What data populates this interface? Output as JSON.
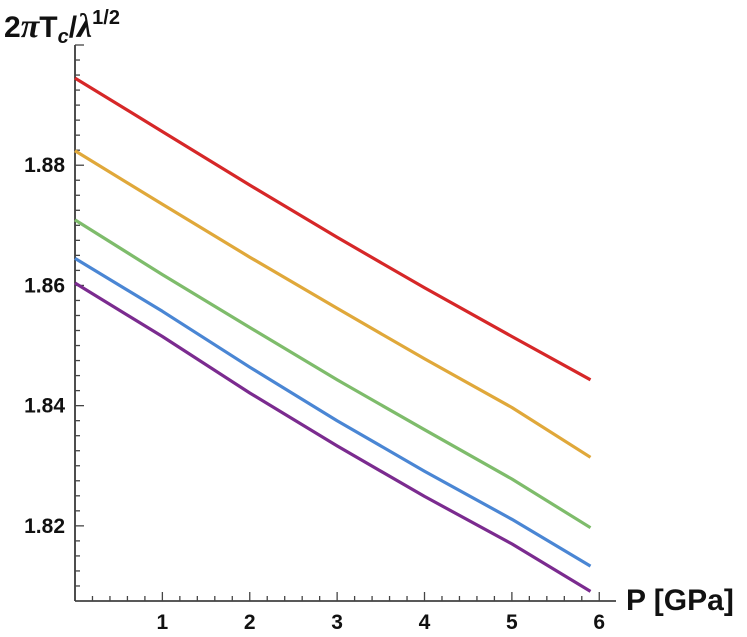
{
  "chart_data": {
    "type": "line",
    "title": "",
    "ylabel": {
      "prefix": "2",
      "pi": "π",
      "t": "T",
      "sub": "c",
      "slash": "/",
      "lambda": "λ",
      "sup": "1/2"
    },
    "xlabel": "P [GPa]",
    "xlim": [
      0,
      6.1
    ],
    "ylim": [
      1.8075,
      1.9
    ],
    "x_ticks": [
      1,
      2,
      3,
      4,
      5,
      6
    ],
    "y_ticks": [
      1.82,
      1.84,
      1.86,
      1.88
    ],
    "y_tick_labels": [
      "1.82",
      "1.84",
      "1.86",
      "1.88"
    ],
    "grid": false,
    "legend": "none",
    "series": [
      {
        "color": "#d62728",
        "x": [
          0,
          1,
          2,
          3,
          4,
          5,
          5.9
        ],
        "y": [
          1.8945,
          1.8856,
          1.8767,
          1.868,
          1.8596,
          1.8515,
          1.8443
        ]
      },
      {
        "color": "#e0a83a",
        "x": [
          0,
          1,
          2,
          3,
          4,
          5,
          5.9
        ],
        "y": [
          1.8824,
          1.8735,
          1.8647,
          1.8562,
          1.8478,
          1.8397,
          1.8314
        ]
      },
      {
        "color": "#7ebc6b",
        "x": [
          0,
          1,
          2,
          3,
          4,
          5,
          5.9
        ],
        "y": [
          1.8709,
          1.8618,
          1.853,
          1.8443,
          1.836,
          1.8278,
          1.8197
        ]
      },
      {
        "color": "#4a86d4",
        "x": [
          0,
          1,
          2,
          3,
          4,
          5,
          5.9
        ],
        "y": [
          1.8645,
          1.8557,
          1.8464,
          1.8375,
          1.8291,
          1.8211,
          1.8133
        ]
      },
      {
        "color": "#7b2b8f",
        "x": [
          0,
          1,
          2,
          3,
          4,
          5,
          5.9
        ],
        "y": [
          1.8604,
          1.8515,
          1.8421,
          1.8333,
          1.8249,
          1.817,
          1.8091
        ]
      }
    ]
  }
}
